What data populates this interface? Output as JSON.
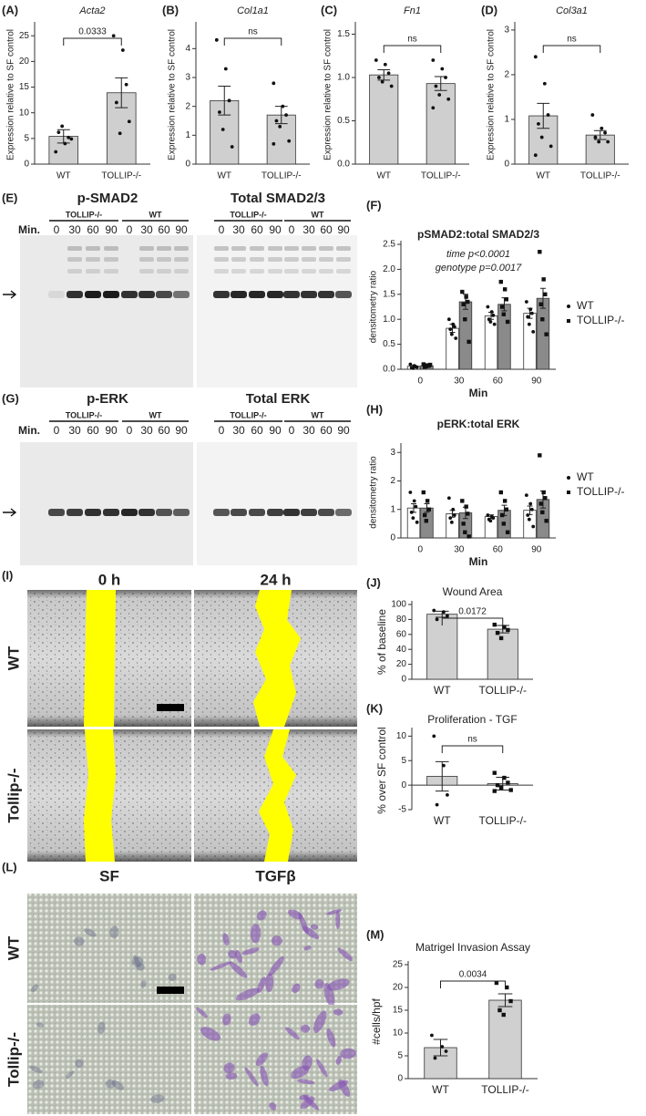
{
  "chart_data": [
    {
      "type": "bar",
      "label": "(A)",
      "title": "Acta2",
      "ylabel": "Expression relative to SF control",
      "categories": [
        "WT",
        "TOLLIP-/-"
      ],
      "values": [
        5.4,
        13.9
      ],
      "errors": [
        1.3,
        2.9
      ],
      "points": [
        [
          2.4,
          4.0,
          5.2,
          6.2,
          7.4,
          4.9
        ],
        [
          25.0,
          22.2,
          15.5,
          12.0,
          6.0,
          8.3
        ]
      ],
      "color": "#cfcfcf",
      "ylim": [
        0,
        27
      ],
      "yticks": [
        0,
        5,
        10,
        15,
        20,
        25
      ],
      "comparison": "0.0333"
    },
    {
      "type": "bar",
      "label": "(B)",
      "title": "Col1a1",
      "ylabel": "Expression relative to SF control",
      "categories": [
        "WT",
        "TOLLIP-/-"
      ],
      "values": [
        2.2,
        1.7
      ],
      "errors": [
        0.5,
        0.3
      ],
      "points": [
        [
          4.3,
          3.3,
          2.2,
          1.8,
          1.2,
          0.6
        ],
        [
          2.8,
          2.0,
          1.7,
          1.5,
          1.3,
          0.8,
          0.7
        ]
      ],
      "color": "#cfcfcf",
      "ylim": [
        0,
        4.8
      ],
      "yticks": [
        0,
        1,
        2,
        3,
        4
      ],
      "comparison": "ns"
    },
    {
      "type": "bar",
      "label": "(C)",
      "title": "Fn1",
      "ylabel": "Expression relative to SF control",
      "categories": [
        "WT",
        "TOLLIP-/-"
      ],
      "values": [
        1.03,
        0.93
      ],
      "errors": [
        0.06,
        0.08
      ],
      "points": [
        [
          1.2,
          1.15,
          1.05,
          1.0,
          0.95,
          0.9
        ],
        [
          1.2,
          1.1,
          1.0,
          0.9,
          0.8,
          0.75,
          0.65
        ]
      ],
      "color": "#cfcfcf",
      "ylim": [
        0,
        1.6
      ],
      "yticks": [
        {
          "value": 0,
          "label": "0.0"
        },
        {
          "value": 0.5,
          "label": "0.5"
        },
        {
          "value": 1,
          "label": "1.0"
        },
        {
          "value": 1.5,
          "label": "1.5"
        }
      ],
      "comparison": "ns"
    },
    {
      "type": "bar",
      "label": "(D)",
      "title": "Col3a1",
      "ylabel": "Expression relative to SF control",
      "categories": [
        "WT",
        "TOLLIP-/-"
      ],
      "values": [
        1.08,
        0.65
      ],
      "errors": [
        0.28,
        0.1
      ],
      "points": [
        [
          2.4,
          1.8,
          1.1,
          0.9,
          0.6,
          0.4,
          0.2
        ],
        [
          1.1,
          0.8,
          0.7,
          0.6,
          0.5,
          0.5
        ]
      ],
      "color": "#cfcfcf",
      "ylim": [
        0,
        3.1
      ],
      "yticks": [
        0,
        1,
        2,
        3
      ],
      "comparison": "ns"
    },
    {
      "type": "grouped_bar",
      "label": "(F)",
      "title": "pSMAD2:total SMAD2/3",
      "ylabel": "densitometry ratio",
      "xlabel": "Min",
      "categories": [
        "0",
        "30",
        "60",
        "90"
      ],
      "series": [
        {
          "name": "WT",
          "color": "#ffffff",
          "values": [
            0.06,
            0.82,
            1.07,
            1.12
          ],
          "errors": [
            0.02,
            0.08,
            0.07,
            0.1
          ],
          "points": [
            [
              0.1,
              0.07,
              0.05,
              0.03,
              0.02,
              0.04
            ],
            [
              1.0,
              0.9,
              0.85,
              0.8,
              0.7,
              0.62
            ],
            [
              1.25,
              1.15,
              1.08,
              1.0,
              0.95,
              0.9
            ],
            [
              1.35,
              1.2,
              1.12,
              1.05,
              0.9,
              0.75
            ]
          ]
        },
        {
          "name": "TOLLIP-/-",
          "color": "#8a8a8a",
          "values": [
            0.07,
            1.35,
            1.3,
            1.42
          ],
          "errors": [
            0.01,
            0.15,
            0.13,
            0.2
          ],
          "points": [
            [
              0.1,
              0.08,
              0.07,
              0.05,
              0.06,
              0.09
            ],
            [
              1.55,
              1.45,
              1.35,
              1.3,
              1.0,
              0.55
            ],
            [
              1.75,
              1.6,
              1.4,
              1.25,
              1.1,
              0.95
            ],
            [
              2.35,
              1.8,
              1.5,
              1.3,
              1.0,
              0.7
            ]
          ]
        }
      ],
      "ylim": [
        0,
        2.5
      ],
      "yticks": [
        {
          "value": 0,
          "label": "0.0"
        },
        {
          "value": 0.5,
          "label": "0.5"
        },
        {
          "value": 1,
          "label": "1.0"
        },
        {
          "value": 1.5,
          "label": "1.5"
        },
        {
          "value": 2,
          "label": "2.0"
        },
        {
          "value": 2.5,
          "label": "2.5"
        }
      ],
      "annotations": [
        "time p<0.0001",
        "genotype p=0.0017"
      ]
    },
    {
      "type": "grouped_bar",
      "label": "(H)",
      "title": "pERK:total ERK",
      "ylabel": "densitometry ratio",
      "xlabel": "Min",
      "categories": [
        "0",
        "30",
        "60",
        "90"
      ],
      "series": [
        {
          "name": "WT",
          "color": "#ffffff",
          "values": [
            1.05,
            0.85,
            0.75,
            0.97
          ],
          "errors": [
            0.15,
            0.12,
            0.06,
            0.15
          ],
          "points": [
            [
              1.6,
              1.3,
              1.1,
              0.9,
              0.7,
              0.55
            ],
            [
              1.4,
              1.0,
              0.8,
              0.7,
              0.55
            ],
            [
              0.8,
              0.75,
              0.7,
              0.65,
              0.6
            ],
            [
              1.5,
              1.2,
              1.0,
              0.8,
              0.65,
              0.4
            ]
          ]
        },
        {
          "name": "TOLLIP-/-",
          "color": "#8a8a8a",
          "values": [
            1.05,
            0.88,
            0.97,
            1.35
          ],
          "errors": [
            0.15,
            0.2,
            0.18,
            0.3
          ],
          "points": [
            [
              1.6,
              1.3,
              1.0,
              0.8,
              0.6
            ],
            [
              1.3,
              1.1,
              0.85,
              0.5,
              0.2,
              0.05
            ],
            [
              1.6,
              1.3,
              1.0,
              0.8,
              0.5,
              0.2
            ],
            [
              2.9,
              1.6,
              1.4,
              1.2,
              0.9,
              0.6
            ]
          ]
        }
      ],
      "ylim": [
        0,
        3.2
      ],
      "yticks": [
        0,
        1,
        2,
        3
      ]
    },
    {
      "type": "bar",
      "label": "(J)",
      "title": "Wound Area",
      "ylabel": "% of baseline",
      "categories": [
        "WT",
        "TOLLIP-/-"
      ],
      "values": [
        87,
        67
      ],
      "errors": [
        4,
        5
      ],
      "points": [
        [
          92,
          90,
          85,
          80
        ],
        [
          73,
          70,
          66,
          62,
          55
        ]
      ],
      "color": "#d0d0d0",
      "ylim": [
        0,
        100
      ],
      "yticks": [
        0,
        20,
        40,
        60,
        80,
        100
      ],
      "comparison": "0.0172"
    },
    {
      "type": "bar",
      "label": "(K)",
      "title": "Proliferation - TGF",
      "ylabel": "% over SF control",
      "categories": [
        "WT",
        "TOLLIP-/-"
      ],
      "values": [
        1.8,
        0.3
      ],
      "errors": [
        3,
        1.3
      ],
      "points": [
        [
          10,
          4,
          -2,
          -4
        ],
        [
          2.5,
          1.5,
          0.5,
          0,
          -0.5,
          -1,
          -1.2
        ]
      ],
      "color": "#d0d0d0",
      "ylim": [
        -5,
        11
      ],
      "yticks": [
        -5,
        0,
        5,
        10
      ],
      "comparison": "ns"
    },
    {
      "type": "bar",
      "label": "(M)",
      "title": "Matrigel Invasion Assay",
      "ylabel": "#cells/hpf",
      "categories": [
        "WT",
        "TOLLIP-/-"
      ],
      "values": [
        6.8,
        17.2
      ],
      "errors": [
        1.8,
        1.4
      ],
      "points": [
        [
          9.5,
          7,
          6,
          4.5
        ],
        [
          21,
          20,
          17,
          15,
          14
        ]
      ],
      "color": "#d0d0d0",
      "ylim": [
        0,
        25
      ],
      "yticks": [
        0,
        5,
        10,
        15,
        20,
        25
      ],
      "comparison": "0.0034"
    }
  ],
  "images": {
    "blots": [
      {
        "label": "(E)",
        "left_title": "p-SMAD2",
        "right_title": "Total SMAD2/3",
        "groups": [
          "TOLLIP-/-",
          "WT"
        ],
        "row_label": "Min.",
        "times": [
          "0",
          "30",
          "60",
          "90"
        ]
      },
      {
        "label": "(G)",
        "left_title": "p-ERK",
        "right_title": "Total ERK",
        "groups": [
          "TOLLIP-/-",
          "WT"
        ],
        "row_label": "Min.",
        "times": [
          "0",
          "30",
          "60",
          "90"
        ]
      }
    ],
    "micrographs": [
      {
        "label": "(I)",
        "columns": [
          "0 h",
          "24 h"
        ],
        "rows": [
          "WT",
          "Tollip-/-"
        ]
      },
      {
        "label": "(L)",
        "columns": [
          "SF",
          "TGFβ"
        ],
        "rows": [
          "WT",
          "Tollip-/-"
        ]
      }
    ]
  }
}
